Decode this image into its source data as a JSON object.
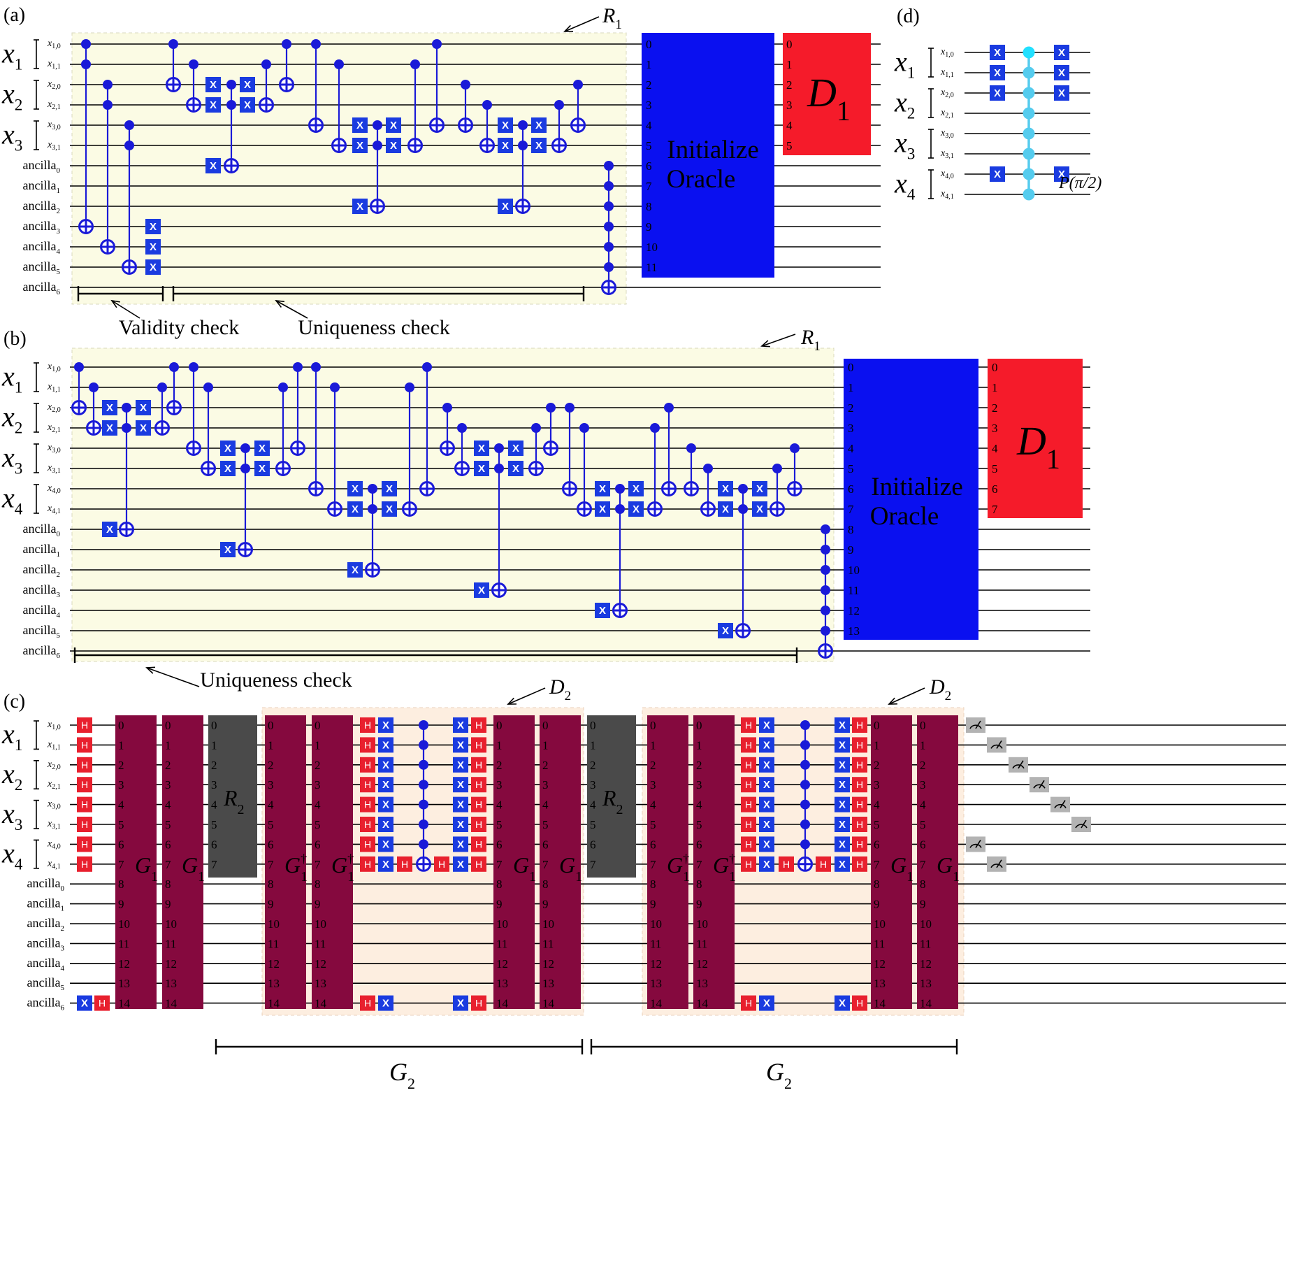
{
  "panels": {
    "a": {
      "label": "(a)",
      "r_label": "R",
      "r_sub": "1",
      "reg_labels": [
        {
          "main": "x",
          "sub": "1",
          "q0": "x",
          "q0s": "1,0",
          "q1": "x",
          "q1s": "1,1"
        },
        {
          "main": "x",
          "sub": "2",
          "q0": "x",
          "q0s": "2,0",
          "q1": "x",
          "q1s": "2,1"
        },
        {
          "main": "x",
          "sub": "3",
          "q0": "x",
          "q0s": "3,0",
          "q1": "x",
          "q1s": "3,1"
        }
      ],
      "ancillas": [
        "0",
        "1",
        "2",
        "3",
        "4",
        "5",
        "6"
      ],
      "ancilla_word": "ancilla",
      "oracle_label_1": "Initialize",
      "oracle_label_2": "Oracle",
      "oracle_indices": [
        "0",
        "1",
        "2",
        "3",
        "4",
        "5",
        "6",
        "7",
        "8",
        "9",
        "10",
        "11"
      ],
      "d_label": "D",
      "d_sub": "1",
      "d_indices": [
        "0",
        "1",
        "2",
        "3",
        "4",
        "5"
      ],
      "validity_label": "Validity check",
      "uniqueness_label": "Uniqueness check"
    },
    "b": {
      "label": "(b)",
      "r_label": "R",
      "r_sub": "1",
      "reg_labels": [
        {
          "main": "x",
          "sub": "1",
          "q0": "x",
          "q0s": "1,0",
          "q1": "x",
          "q1s": "1,1"
        },
        {
          "main": "x",
          "sub": "2",
          "q0": "x",
          "q0s": "2,0",
          "q1": "x",
          "q1s": "2,1"
        },
        {
          "main": "x",
          "sub": "3",
          "q0": "x",
          "q0s": "3,0",
          "q1": "x",
          "q1s": "3,1"
        },
        {
          "main": "x",
          "sub": "4",
          "q0": "x",
          "q0s": "4,0",
          "q1": "x",
          "q1s": "4,1"
        }
      ],
      "ancillas": [
        "0",
        "1",
        "2",
        "3",
        "4",
        "5",
        "6"
      ],
      "ancilla_word": "ancilla",
      "oracle_label_1": "Initialize",
      "oracle_label_2": "Oracle",
      "oracle_indices": [
        "0",
        "1",
        "2",
        "3",
        "4",
        "5",
        "6",
        "7",
        "8",
        "9",
        "10",
        "11",
        "12",
        "13"
      ],
      "d_label": "D",
      "d_sub": "1",
      "d_indices": [
        "0",
        "1",
        "2",
        "3",
        "4",
        "5",
        "6",
        "7"
      ],
      "uniqueness_label": "Uniqueness check"
    },
    "c": {
      "label": "(c)",
      "reg_labels": [
        {
          "main": "x",
          "sub": "1",
          "q0": "x",
          "q0s": "1,0",
          "q1": "x",
          "q1s": "1,1"
        },
        {
          "main": "x",
          "sub": "2",
          "q0": "x",
          "q0s": "2,0",
          "q1": "x",
          "q1s": "2,1"
        },
        {
          "main": "x",
          "sub": "3",
          "q0": "x",
          "q0s": "3,0",
          "q1": "x",
          "q1s": "3,1"
        },
        {
          "main": "x",
          "sub": "4",
          "q0": "x",
          "q0s": "4,0",
          "q1": "x",
          "q1s": "4,1"
        }
      ],
      "ancillas": [
        "0",
        "1",
        "2",
        "3",
        "4",
        "5",
        "6"
      ],
      "ancilla_word": "ancilla",
      "g_label": "G",
      "g_sub": "1",
      "g_dagger": "†",
      "r2_label": "R",
      "r2_sub": "2",
      "d2_label": "D",
      "d2_sub": "2",
      "g2_label": "G",
      "g2_sub": "2",
      "g_indices": [
        "0",
        "1",
        "2",
        "3",
        "4",
        "5",
        "6",
        "7",
        "8",
        "9",
        "10",
        "11",
        "12",
        "13",
        "14"
      ],
      "r2_indices": [
        "0",
        "1",
        "2",
        "3",
        "4",
        "5",
        "6",
        "7"
      ],
      "h_gate": "H",
      "x_gate": "X"
    },
    "d": {
      "label": "(d)",
      "reg_labels": [
        {
          "main": "x",
          "sub": "1",
          "q0": "x",
          "q0s": "1,0",
          "q1": "x",
          "q1s": "1,1"
        },
        {
          "main": "x",
          "sub": "2",
          "q0": "x",
          "q0s": "2,0",
          "q1": "x",
          "q1s": "2,1"
        },
        {
          "main": "x",
          "sub": "3",
          "q0": "x",
          "q0s": "3,0",
          "q1": "x",
          "q1s": "3,1"
        },
        {
          "main": "x",
          "sub": "4",
          "q0": "x",
          "q0s": "4,0",
          "q1": "x",
          "q1s": "4,1"
        }
      ],
      "phase_label": "P(π/2)",
      "x_gate": "X"
    }
  },
  "colors": {
    "oracle_blue": "#0a10f0",
    "d1_red": "#f51b2a",
    "g1_maroon": "#85093e",
    "r2_gray": "#4a4a4a",
    "gate_blue": "#1a3be0",
    "gate_red": "#e8202e",
    "line_blue": "#1a1ad8",
    "r1_bg": "#fbfbe4",
    "d2_bg": "#fdeee0",
    "phase_cyan": "#55ccee",
    "meter_gray": "#b3b3b3"
  }
}
